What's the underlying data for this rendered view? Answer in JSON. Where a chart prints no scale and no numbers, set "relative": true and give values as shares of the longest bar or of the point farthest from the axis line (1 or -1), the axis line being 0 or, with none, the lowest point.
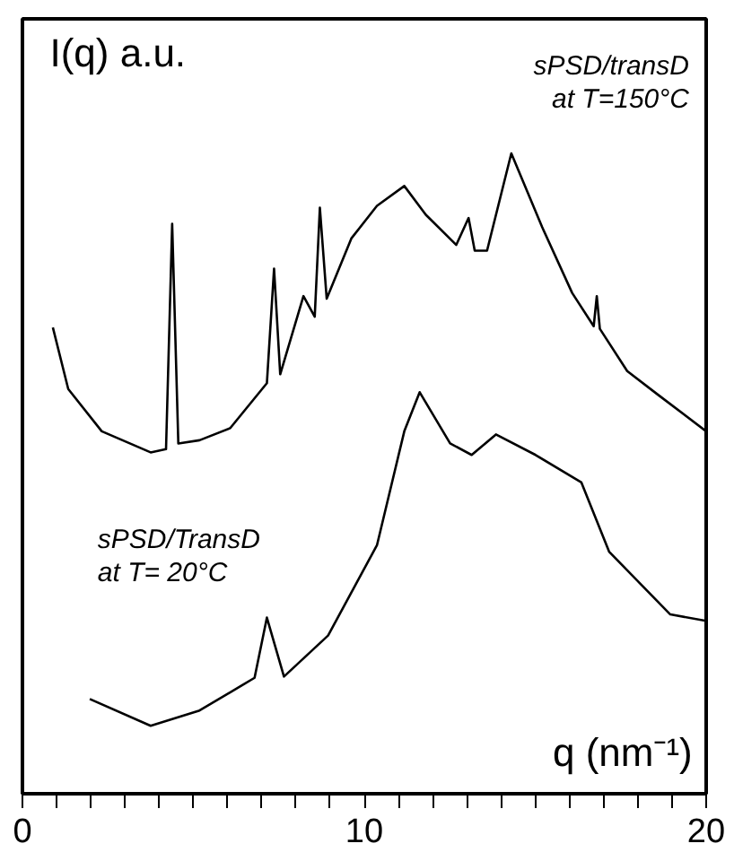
{
  "chart_data": {
    "type": "line",
    "relative": true,
    "xlabel": "q (nm⁻¹)",
    "ylabel": "I(q) a.u.",
    "xlim": [
      0,
      20
    ],
    "xticks": [
      0,
      {
        "value": 1,
        "label": null
      },
      {
        "value": 2,
        "label": null
      },
      {
        "value": 3,
        "label": null
      },
      {
        "value": 4,
        "label": null
      },
      {
        "value": 5,
        "label": null
      },
      {
        "value": 6,
        "label": null
      },
      {
        "value": 7,
        "label": null
      },
      {
        "value": 8,
        "label": null
      },
      {
        "value": 9,
        "label": null
      },
      10,
      {
        "value": 11,
        "label": null
      },
      {
        "value": 12,
        "label": null
      },
      {
        "value": 13,
        "label": null
      },
      {
        "value": 14,
        "label": null
      },
      {
        "value": 15,
        "label": null
      },
      {
        "value": 16,
        "label": null
      },
      {
        "value": 17,
        "label": null
      },
      {
        "value": 18,
        "label": null
      },
      {
        "value": 19,
        "label": null
      },
      20
    ],
    "grid": false,
    "marker": "none",
    "line_style": "solid",
    "series": [
      {
        "name": "sPSD/transD\nat T=150°C",
        "color": "#000000",
        "x": [
          0.89,
          1.34,
          2.32,
          3.75,
          4.2,
          4.38,
          4.56,
          5.18,
          6.08,
          7.15,
          7.36,
          7.54,
          8.22,
          8.55,
          8.7,
          8.9,
          9.62,
          10.37,
          11.17,
          11.8,
          12.69,
          13.05,
          13.23,
          13.59,
          14.3,
          15.2,
          16.08,
          16.71,
          16.8,
          16.89,
          17.69,
          18.59,
          20
        ],
        "values": [
          0.728,
          0.632,
          0.566,
          0.533,
          0.538,
          0.89,
          0.547,
          0.552,
          0.571,
          0.641,
          0.82,
          0.655,
          0.777,
          0.745,
          0.915,
          0.773,
          0.867,
          0.918,
          0.949,
          0.904,
          0.857,
          0.899,
          0.848,
          0.848,
          1.0,
          0.885,
          0.782,
          0.73,
          0.777,
          0.726,
          0.66,
          0.623,
          0.566
        ]
      },
      {
        "name": "sPSD/TransD\nat T= 20°C",
        "color": "#000000",
        "x": [
          1.97,
          3.75,
          5.18,
          6.79,
          7.15,
          7.65,
          8.94,
          10.37,
          11.17,
          11.62,
          12.51,
          13.14,
          13.85,
          15.01,
          16.35,
          17.16,
          18.95,
          20
        ],
        "values": [
          0.148,
          0.106,
          0.13,
          0.181,
          0.275,
          0.183,
          0.247,
          0.388,
          0.566,
          0.627,
          0.547,
          0.529,
          0.561,
          0.529,
          0.486,
          0.378,
          0.28,
          0.27
        ]
      }
    ]
  }
}
